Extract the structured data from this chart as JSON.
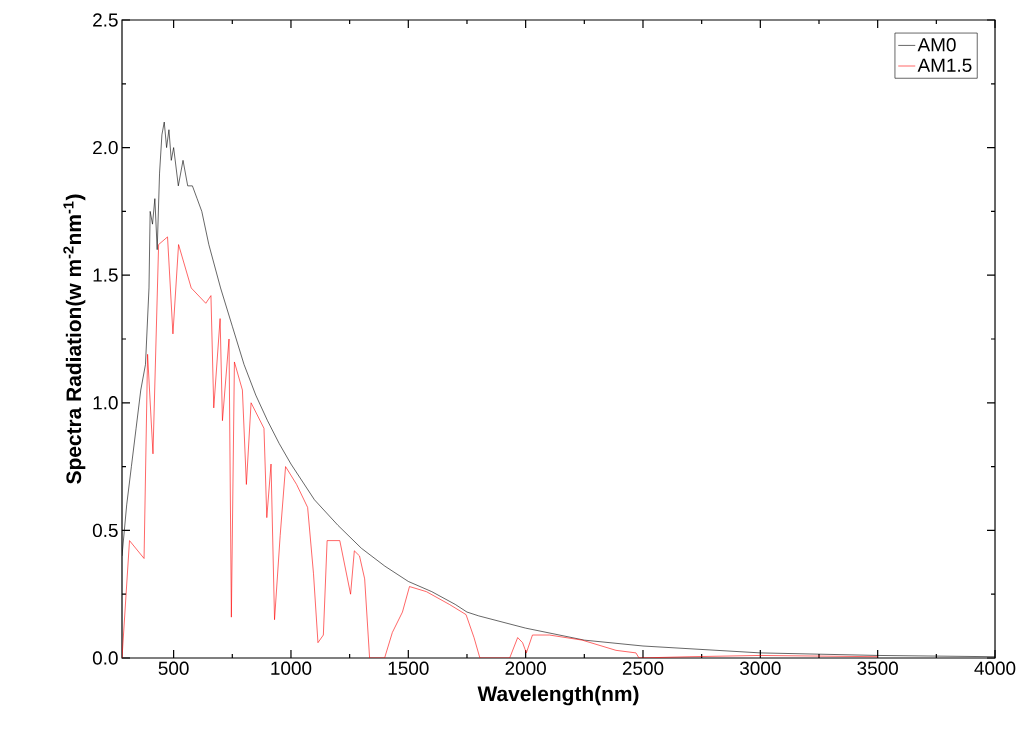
{
  "chart_data": {
    "type": "line",
    "xlabel": "Wavelength(nm)",
    "ylabel": "Spectra Radiation(w m$^{-2}$nm$^{-1}$)",
    "xlim": [
      280,
      4000
    ],
    "ylim": [
      0,
      2.5
    ],
    "xticks": [
      500,
      1000,
      1500,
      2000,
      2500,
      3000,
      3500,
      4000
    ],
    "yticks": [
      {
        "value": 0,
        "label": "0.0"
      },
      {
        "value": 0.5,
        "label": "0.5"
      },
      {
        "value": 1,
        "label": "1.0"
      },
      {
        "value": 1.5,
        "label": "1.5"
      },
      {
        "value": 2,
        "label": "2.0"
      },
      {
        "value": 2.5,
        "label": "2.5"
      }
    ],
    "legend": "top right",
    "marker": "none",
    "line_style": "solid",
    "series": [
      {
        "name": "AM0",
        "color": "#000000",
        "x": [
          280,
          300,
          320,
          340,
          360,
          380,
          395,
          400,
          410,
          420,
          430,
          440,
          450,
          460,
          470,
          480,
          490,
          500,
          520,
          540,
          560,
          580,
          600,
          620,
          650,
          700,
          750,
          800,
          850,
          900,
          950,
          1000,
          1100,
          1200,
          1300,
          1400,
          1500,
          1600,
          1700,
          1750,
          1800,
          2000,
          2250,
          2500,
          3000,
          3500,
          4000
        ],
        "values": [
          0.4,
          0.6,
          0.75,
          0.9,
          1.05,
          1.15,
          1.45,
          1.75,
          1.7,
          1.8,
          1.6,
          1.9,
          2.05,
          2.1,
          2.0,
          2.07,
          1.95,
          2.0,
          1.85,
          1.95,
          1.85,
          1.85,
          1.8,
          1.75,
          1.62,
          1.45,
          1.3,
          1.15,
          1.03,
          0.93,
          0.84,
          0.76,
          0.62,
          0.52,
          0.43,
          0.36,
          0.3,
          0.26,
          0.21,
          0.18,
          0.165,
          0.117,
          0.07,
          0.047,
          0.02,
          0.01,
          0.005
        ]
      },
      {
        "name": "AM1.5",
        "color": "#ff0000",
        "x": [
          280,
          312,
          374,
          389,
          412,
          436,
          474,
          497,
          521,
          575,
          637,
          659,
          671,
          698,
          708,
          736,
          746,
          759,
          793,
          810,
          830,
          885,
          897,
          915,
          930,
          954,
          977,
          1024,
          1071,
          1096,
          1115,
          1138,
          1154,
          1208,
          1254,
          1270,
          1292,
          1314,
          1335,
          1399,
          1432,
          1475,
          1505,
          1577,
          1675,
          1746,
          1780,
          1805,
          1932,
          1966,
          1987,
          2003,
          2029,
          2101,
          2241,
          2385,
          2470,
          2483,
          2700,
          3000,
          3500
        ],
        "values": [
          0,
          0.46,
          0.39,
          1.19,
          0.8,
          1.62,
          1.65,
          1.27,
          1.62,
          1.45,
          1.39,
          1.42,
          0.98,
          1.33,
          0.93,
          1.25,
          0.16,
          1.16,
          1.05,
          0.68,
          1.0,
          0.9,
          0.55,
          0.76,
          0.15,
          0.48,
          0.75,
          0.68,
          0.59,
          0.33,
          0.06,
          0.09,
          0.46,
          0.46,
          0.25,
          0.42,
          0.4,
          0.31,
          0,
          0,
          0.1,
          0.18,
          0.28,
          0.26,
          0.21,
          0.17,
          0.08,
          0,
          0,
          0.08,
          0.06,
          0.02,
          0.09,
          0.09,
          0.07,
          0.03,
          0.02,
          0,
          0.005,
          0.01,
          0.005
        ]
      }
    ]
  }
}
